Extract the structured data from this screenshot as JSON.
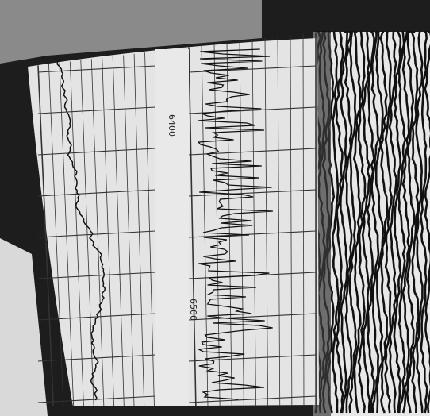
{
  "depth_labels": [
    "6400",
    "6500"
  ]
}
